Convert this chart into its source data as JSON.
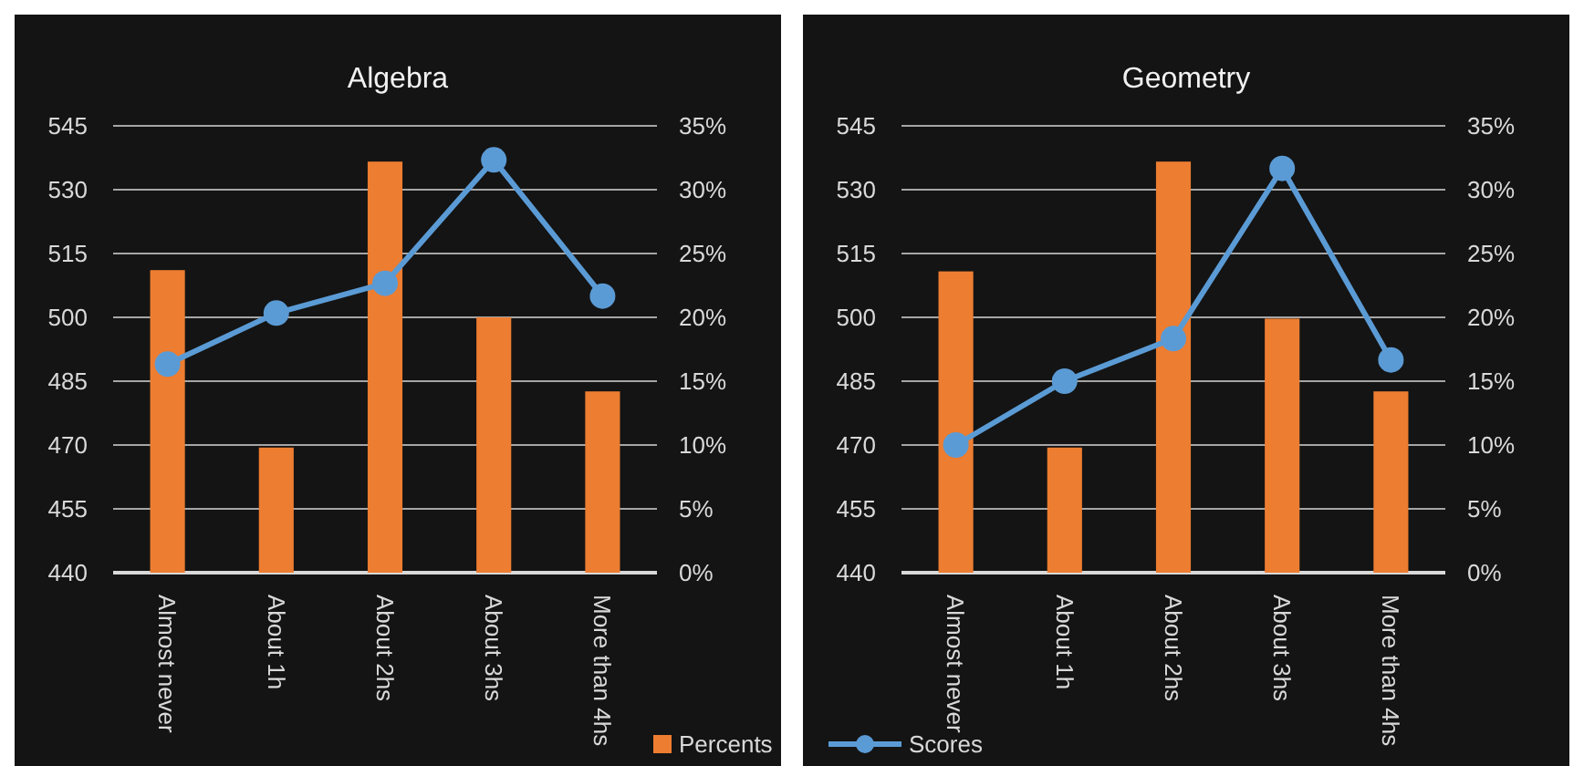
{
  "chart_data": [
    {
      "type": "bar",
      "title": "Algebra",
      "categories": [
        "Almost never",
        "About 1h",
        "About 2hs",
        "About 3hs",
        "More than 4hs"
      ],
      "series": [
        {
          "name": "Percents",
          "axis": "y2",
          "color": "#ed7d31",
          "values": [
            23.7,
            9.8,
            32.2,
            20,
            14.2
          ]
        },
        {
          "type": "line",
          "axis": "y",
          "color": "#5b9bd5",
          "values": [
            489,
            501,
            508,
            537,
            505
          ]
        }
      ],
      "ylim": [
        440,
        545
      ],
      "yticks": [
        440,
        455,
        470,
        485,
        500,
        515,
        530,
        545
      ],
      "y2lim": [
        0,
        35
      ],
      "y2ticks": [
        {
          "value": 0,
          "label": "0%"
        },
        {
          "value": 5,
          "label": "5%"
        },
        {
          "value": 10,
          "label": "10%"
        },
        {
          "value": 15,
          "label": "15%"
        },
        {
          "value": 20,
          "label": "20%"
        },
        {
          "value": 25,
          "label": "25%"
        },
        {
          "value": 30,
          "label": "30%"
        },
        {
          "value": 35,
          "label": "35%"
        }
      ],
      "grid": "y",
      "marker": "circle",
      "legend": "bottom right"
    },
    {
      "type": "bar",
      "title": "Geometry",
      "categories": [
        "Almost never",
        "About 1h",
        "About 2hs",
        "About 3hs",
        "More than 4hs"
      ],
      "series": [
        {
          "axis": "y2",
          "color": "#ed7d31",
          "values": [
            23.6,
            9.8,
            32.2,
            19.9,
            14.2
          ]
        },
        {
          "name": "Scores",
          "type": "line",
          "axis": "y",
          "color": "#5b9bd5",
          "values": [
            470,
            485,
            495,
            535,
            490
          ]
        }
      ],
      "ylim": [
        440,
        545
      ],
      "yticks": [
        440,
        455,
        470,
        485,
        500,
        515,
        530,
        545
      ],
      "y2lim": [
        0,
        35
      ],
      "y2ticks": [
        {
          "value": 0,
          "label": "0%"
        },
        {
          "value": 5,
          "label": "5%"
        },
        {
          "value": 10,
          "label": "10%"
        },
        {
          "value": 15,
          "label": "15%"
        },
        {
          "value": 20,
          "label": "20%"
        },
        {
          "value": 25,
          "label": "25%"
        },
        {
          "value": 30,
          "label": "30%"
        },
        {
          "value": 35,
          "label": "35%"
        }
      ],
      "grid": "y",
      "marker": "circle",
      "legend": "bottom left"
    }
  ]
}
